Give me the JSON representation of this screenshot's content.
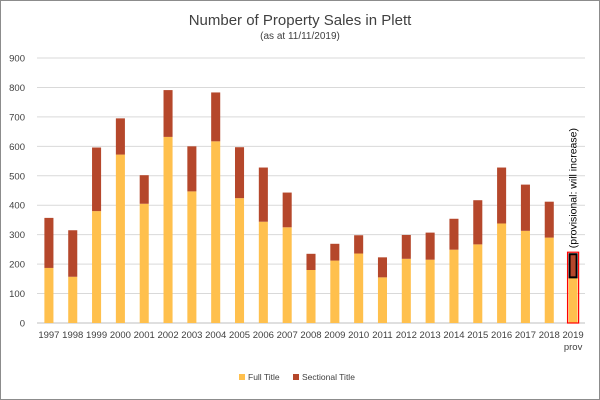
{
  "chart_data": {
    "type": "bar",
    "stacked": true,
    "title": "Number of Property Sales in Plett",
    "subtitle": "(as at 11/11/2019)",
    "categories": [
      "1997",
      "1998",
      "1999",
      "2000",
      "2001",
      "2002",
      "2003",
      "2004",
      "2005",
      "2006",
      "2007",
      "2008",
      "2009",
      "2010",
      "2011",
      "2012",
      "2013",
      "2014",
      "2015",
      "2016",
      "2017",
      "2018",
      "2019"
    ],
    "category_sublabels": {
      "2019": "prov"
    },
    "series": [
      {
        "name": "Full Title",
        "color": "#FFC04D",
        "values": [
          187,
          157,
          380,
          572,
          405,
          632,
          447,
          617,
          424,
          344,
          325,
          180,
          212,
          236,
          155,
          218,
          215,
          249,
          267,
          338,
          313,
          290,
          155
        ]
      },
      {
        "name": "Sectional Title",
        "color": "#B5472B",
        "values": [
          170,
          158,
          216,
          123,
          97,
          159,
          153,
          166,
          173,
          184,
          118,
          55,
          57,
          62,
          68,
          81,
          92,
          105,
          150,
          190,
          157,
          122,
          82
        ]
      }
    ],
    "provisional": {
      "category": "2019",
      "note": "(provisional: will increase)",
      "outline_color": "#FF0000"
    },
    "ylim": [
      0,
      900
    ],
    "yticks": [
      0,
      100,
      200,
      300,
      400,
      500,
      600,
      700,
      800,
      900
    ],
    "grid": true,
    "legend_position": "bottom"
  }
}
